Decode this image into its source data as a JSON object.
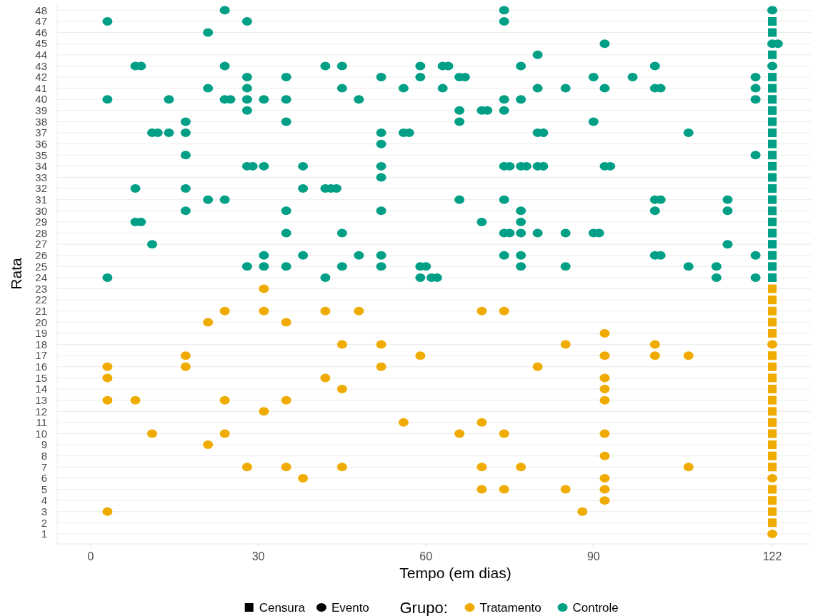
{
  "chart_data": {
    "type": "scatter",
    "xlabel": "Tempo (em dias)",
    "ylabel": "Rata",
    "legend_title": "Grupo:",
    "legend": "bottom",
    "grid": "y",
    "annotations": [
      "Censura",
      "Evento"
    ],
    "xlim": [
      -6,
      128.9
    ],
    "xticks": [
      0,
      30,
      60,
      90,
      122
    ],
    "ylim": [
      0.1,
      48.6
    ],
    "yticks": [
      1,
      2,
      3,
      4,
      5,
      6,
      7,
      8,
      9,
      10,
      11,
      12,
      13,
      14,
      15,
      16,
      17,
      18,
      19,
      20,
      21,
      22,
      23,
      24,
      25,
      26,
      27,
      28,
      29,
      30,
      31,
      32,
      33,
      34,
      35,
      36,
      37,
      38,
      39,
      40,
      41,
      42,
      43,
      44,
      45,
      46,
      47,
      48
    ],
    "series": [
      {
        "name": "Tratamento",
        "color": "#f0ab00",
        "marker": "circle",
        "x": [
          31,
          24,
          31,
          42,
          48,
          70,
          74,
          21,
          35,
          92,
          45,
          52,
          85,
          101,
          122,
          17,
          59,
          92,
          101,
          107,
          3,
          17,
          52,
          80,
          3,
          42,
          92,
          45,
          92,
          3,
          8,
          24,
          35,
          92,
          31,
          56,
          70,
          11,
          24,
          66,
          74,
          92,
          21,
          92,
          28,
          35,
          45,
          70,
          77,
          107,
          38,
          92,
          122,
          70,
          74,
          85,
          92,
          92,
          3,
          88,
          122
        ],
        "values": [
          23,
          21,
          21,
          21,
          21,
          21,
          21,
          20,
          20,
          19,
          18,
          18,
          18,
          18,
          18,
          17,
          17,
          17,
          17,
          17,
          16,
          16,
          16,
          16,
          15,
          15,
          15,
          14,
          14,
          13,
          13,
          13,
          13,
          13,
          12,
          11,
          11,
          10,
          10,
          10,
          10,
          10,
          9,
          8,
          7,
          7,
          7,
          7,
          7,
          7,
          6,
          6,
          6,
          5,
          5,
          5,
          5,
          4,
          3,
          3,
          1
        ]
      },
      {
        "name": "Controle",
        "color": "#009f86",
        "marker": "circle",
        "x": [
          24,
          74,
          122,
          3,
          28,
          74,
          21,
          92,
          122,
          123,
          80,
          8,
          9,
          24,
          42,
          45,
          59,
          63,
          64,
          77,
          101,
          122,
          28,
          35,
          52,
          59,
          66,
          67,
          90,
          97,
          119,
          21,
          28,
          45,
          56,
          63,
          80,
          85,
          92,
          101,
          102,
          119,
          3,
          14,
          24,
          25,
          28,
          31,
          35,
          48,
          74,
          77,
          119,
          28,
          66,
          70,
          71,
          74,
          17,
          35,
          66,
          90,
          11,
          12,
          14,
          17,
          52,
          56,
          57,
          80,
          81,
          107,
          52,
          17,
          119,
          28,
          29,
          31,
          38,
          52,
          74,
          75,
          77,
          78,
          80,
          81,
          92,
          93,
          52,
          8,
          17,
          38,
          42,
          43,
          44,
          21,
          24,
          66,
          74,
          101,
          102,
          114,
          17,
          35,
          52,
          77,
          101,
          114,
          8,
          9,
          70,
          77,
          35,
          45,
          74,
          75,
          77,
          80,
          85,
          90,
          91,
          11,
          114,
          31,
          38,
          48,
          52,
          74,
          77,
          101,
          102,
          119,
          28,
          31,
          35,
          45,
          52,
          59,
          60,
          77,
          85,
          107,
          112,
          3,
          42,
          59,
          61,
          62,
          112,
          119
        ],
        "values": [
          48,
          48,
          48,
          47,
          47,
          47,
          46,
          45,
          45,
          45,
          44,
          43,
          43,
          43,
          43,
          43,
          43,
          43,
          43,
          43,
          43,
          43,
          42,
          42,
          42,
          42,
          42,
          42,
          42,
          42,
          42,
          41,
          41,
          41,
          41,
          41,
          41,
          41,
          41,
          41,
          41,
          41,
          40,
          40,
          40,
          40,
          40,
          40,
          40,
          40,
          40,
          40,
          40,
          39,
          39,
          39,
          39,
          39,
          38,
          38,
          38,
          38,
          37,
          37,
          37,
          37,
          37,
          37,
          37,
          37,
          37,
          37,
          36,
          35,
          35,
          34,
          34,
          34,
          34,
          34,
          34,
          34,
          34,
          34,
          34,
          34,
          34,
          34,
          33,
          32,
          32,
          32,
          32,
          32,
          32,
          31,
          31,
          31,
          31,
          31,
          31,
          31,
          30,
          30,
          30,
          30,
          30,
          30,
          29,
          29,
          29,
          29,
          28,
          28,
          28,
          28,
          28,
          28,
          28,
          28,
          28,
          27,
          27,
          26,
          26,
          26,
          26,
          26,
          26,
          26,
          26,
          26,
          25,
          25,
          25,
          25,
          25,
          25,
          25,
          25,
          25,
          25,
          25,
          24,
          24,
          24,
          24,
          24,
          24,
          24
        ]
      },
      {
        "color": "#f0ab00",
        "marker": "square",
        "x": [
          122,
          122,
          122,
          122,
          122,
          122,
          122,
          122,
          122,
          122,
          122,
          122,
          122,
          122,
          122,
          122,
          122,
          122,
          122,
          122
        ],
        "values": [
          23,
          22,
          21,
          20,
          19,
          17,
          16,
          15,
          14,
          13,
          12,
          11,
          10,
          9,
          8,
          7,
          5,
          4,
          3,
          2
        ]
      },
      {
        "color": "#009f86",
        "marker": "square",
        "x": [
          122,
          122,
          122,
          122,
          122,
          122,
          122,
          122,
          122,
          122,
          122,
          122,
          122,
          122,
          122,
          122,
          122,
          122,
          122,
          122,
          122,
          122
        ],
        "values": [
          47,
          46,
          44,
          42,
          41,
          40,
          39,
          38,
          37,
          36,
          35,
          34,
          33,
          32,
          31,
          30,
          29,
          28,
          27,
          26,
          25,
          24
        ]
      }
    ]
  }
}
